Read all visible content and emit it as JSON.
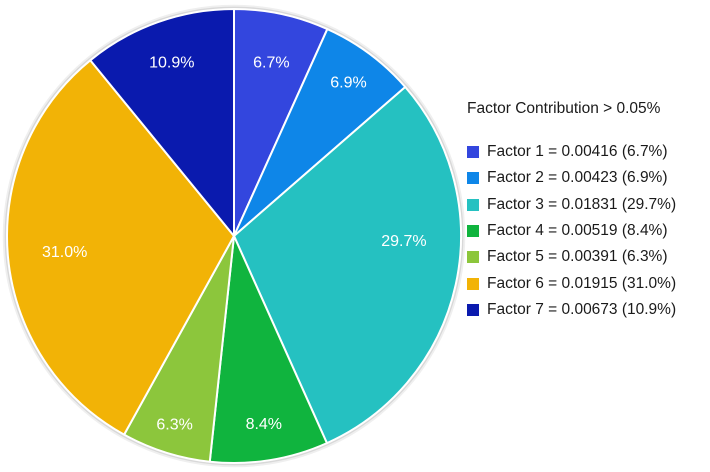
{
  "chart_data": {
    "type": "pie",
    "title": "Factor Contribution > 0.05%",
    "legend_position": "right",
    "start_angle_deg": 0,
    "direction": "clockwise",
    "label_text_color": "#FFFFFF",
    "slices": [
      {
        "label": "Factor 1",
        "value": 0.00416,
        "percent": 6.7,
        "percent_label": "6.7%",
        "legend_text": "Factor 1 = 0.00416 (6.7%)",
        "color": "#3346DE"
      },
      {
        "label": "Factor 2",
        "value": 0.00423,
        "percent": 6.9,
        "percent_label": "6.9%",
        "legend_text": "Factor 2 = 0.00423 (6.9%)",
        "color": "#0E86E8"
      },
      {
        "label": "Factor 3",
        "value": 0.01831,
        "percent": 29.7,
        "percent_label": "29.7%",
        "legend_text": "Factor 3 = 0.01831 (29.7%)",
        "color": "#25C1C1"
      },
      {
        "label": "Factor 4",
        "value": 0.00519,
        "percent": 8.4,
        "percent_label": "8.4%",
        "legend_text": "Factor 4 = 0.00519 (8.4%)",
        "color": "#10B43E"
      },
      {
        "label": "Factor 5",
        "value": 0.00391,
        "percent": 6.3,
        "percent_label": "6.3%",
        "legend_text": "Factor 5 = 0.00391 (6.3%)",
        "color": "#8CC63C"
      },
      {
        "label": "Factor 6",
        "value": 0.01915,
        "percent": 31.0,
        "percent_label": "31.0%",
        "legend_text": "Factor 6 = 0.01915 (31.0%)",
        "color": "#F2B306"
      },
      {
        "label": "Factor 7",
        "value": 0.00673,
        "percent": 10.9,
        "percent_label": "10.9%",
        "legend_text": "Factor 7 = 0.00673 (10.9%)",
        "color": "#0A1AAE"
      }
    ]
  }
}
